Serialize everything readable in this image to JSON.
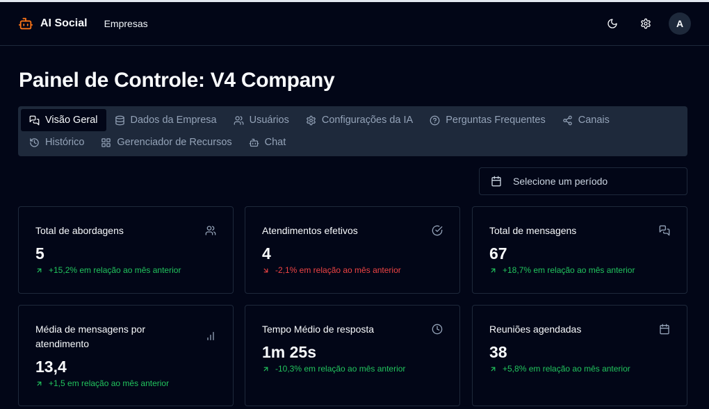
{
  "app": {
    "name": "AI Social",
    "nav_link": "Empresas",
    "avatar_initial": "A",
    "accent_color": "#f97316"
  },
  "page": {
    "title": "Painel de Controle: V4 Company"
  },
  "tabs": [
    {
      "label": "Visão Geral",
      "icon": "messages-icon",
      "active": true
    },
    {
      "label": "Dados da Empresa",
      "icon": "database-icon",
      "active": false
    },
    {
      "label": "Usuários",
      "icon": "users-icon",
      "active": false
    },
    {
      "label": "Configurações da IA",
      "icon": "gear-icon",
      "active": false
    },
    {
      "label": "Perguntas Frequentes",
      "icon": "help-circle-icon",
      "active": false
    },
    {
      "label": "Canais",
      "icon": "share-icon",
      "active": false
    },
    {
      "label": "Histórico",
      "icon": "history-icon",
      "active": false
    },
    {
      "label": "Gerenciador de Recursos",
      "icon": "grid-icon",
      "active": false
    },
    {
      "label": "Chat",
      "icon": "bot-icon",
      "active": false
    }
  ],
  "date_picker": {
    "placeholder": "Selecione um período",
    "icon": "calendar-icon"
  },
  "cards": [
    {
      "title": "Total de abordagens",
      "value": "5",
      "change": "+15,2% em relação ao mês anterior",
      "trend": "up",
      "icon": "users-icon"
    },
    {
      "title": "Atendimentos efetivos",
      "value": "4",
      "change": "-2,1% em relação ao mês anterior",
      "trend": "down",
      "icon": "check-circle-icon"
    },
    {
      "title": "Total de mensagens",
      "value": "67",
      "change": "+18,7% em relação ao mês anterior",
      "trend": "up",
      "icon": "messages-icon"
    },
    {
      "title": "Média de mensagens por atendimento",
      "value": "13,4",
      "change": "+1,5 em relação ao mês anterior",
      "trend": "up",
      "icon": "bar-chart-icon"
    },
    {
      "title": "Tempo Médio de resposta",
      "value": "1m 25s",
      "change": "-10,3% em relação ao mês anterior",
      "trend": "up",
      "icon": "clock-icon"
    },
    {
      "title": "Reuniões agendadas",
      "value": "38",
      "change": "+5,8% em relação ao mês anterior",
      "trend": "up",
      "icon": "calendar-icon"
    }
  ],
  "colors": {
    "positive": "#22c55e",
    "negative": "#ef4444",
    "background": "#020617",
    "tab_bar": "#1e293b"
  }
}
